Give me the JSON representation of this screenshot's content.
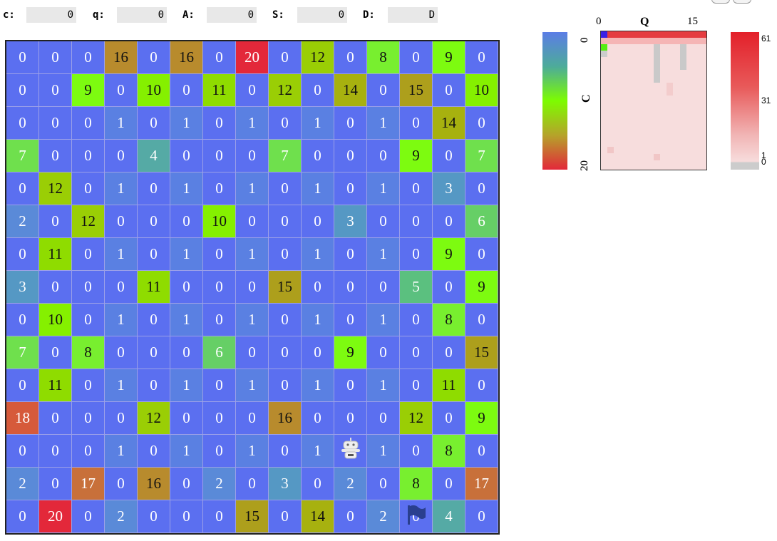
{
  "status": [
    {
      "label": "c:",
      "value": "0"
    },
    {
      "label": "q:",
      "value": "0"
    },
    {
      "label": "A:",
      "value": "0"
    },
    {
      "label": "S:",
      "value": "0"
    },
    {
      "label": "D:",
      "value": "D"
    }
  ],
  "board": {
    "rows": [
      [
        "0",
        "0",
        "0",
        "16",
        "0",
        "16",
        "0",
        "20",
        "0",
        "12",
        "0",
        "8",
        "0",
        "9",
        "0"
      ],
      [
        "0",
        "0",
        "9",
        "0",
        "10",
        "0",
        "11",
        "0",
        "12",
        "0",
        "14",
        "0",
        "15",
        "0",
        "10"
      ],
      [
        "0",
        "0",
        "0",
        "1",
        "0",
        "1",
        "0",
        "1",
        "0",
        "1",
        "0",
        "1",
        "0",
        "14",
        "0"
      ],
      [
        "7",
        "0",
        "0",
        "0",
        "4",
        "0",
        "0",
        "0",
        "7",
        "0",
        "0",
        "0",
        "9",
        "0",
        "7"
      ],
      [
        "0",
        "12",
        "0",
        "1",
        "0",
        "1",
        "0",
        "1",
        "0",
        "1",
        "0",
        "1",
        "0",
        "3",
        "0"
      ],
      [
        "2",
        "0",
        "12",
        "0",
        "0",
        "0",
        "10",
        "0",
        "0",
        "0",
        "3",
        "0",
        "0",
        "0",
        "6"
      ],
      [
        "0",
        "11",
        "0",
        "1",
        "0",
        "1",
        "0",
        "1",
        "0",
        "1",
        "0",
        "1",
        "0",
        "9",
        "0"
      ],
      [
        "3",
        "0",
        "0",
        "0",
        "11",
        "0",
        "0",
        "0",
        "15",
        "0",
        "0",
        "0",
        "5",
        "0",
        "9"
      ],
      [
        "0",
        "10",
        "0",
        "1",
        "0",
        "1",
        "0",
        "1",
        "0",
        "1",
        "0",
        "1",
        "0",
        "8",
        "0"
      ],
      [
        "7",
        "0",
        "8",
        "0",
        "0",
        "0",
        "6",
        "0",
        "0",
        "0",
        "9",
        "0",
        "0",
        "0",
        "15"
      ],
      [
        "0",
        "11",
        "0",
        "1",
        "0",
        "1",
        "0",
        "1",
        "0",
        "1",
        "0",
        "1",
        "0",
        "11",
        "0"
      ],
      [
        "18",
        "0",
        "0",
        "0",
        "12",
        "0",
        "0",
        "0",
        "16",
        "0",
        "0",
        "0",
        "12",
        "0",
        "9"
      ],
      [
        "0",
        "0",
        "0",
        "1",
        "0",
        "1",
        "0",
        "1",
        "0",
        "1",
        "",
        "1",
        "0",
        "8",
        "0"
      ],
      [
        "2",
        "0",
        "17",
        "0",
        "16",
        "0",
        "2",
        "0",
        "3",
        "0",
        "2",
        "0",
        "8",
        "0",
        "17"
      ],
      [
        "0",
        "20",
        "0",
        "2",
        "0",
        "0",
        "0",
        "15",
        "0",
        "14",
        "0",
        "2",
        "0",
        "4",
        "0"
      ]
    ],
    "agent": {
      "row": 12,
      "col": 10,
      "icon": "robot-icon"
    },
    "goal": {
      "row": 14,
      "col": 12,
      "icon": "flag-icon",
      "color": "#2a3f8f"
    },
    "colors": {
      "zero": "#5b6ff0",
      "low": "#5b7de6",
      "mid": "#7dfc00",
      "high": "#b5a32a",
      "max": "#e3283a"
    }
  },
  "colorbar": {
    "ticks": [
      "0",
      "20"
    ]
  },
  "heatmap": {
    "xlabel": "Q",
    "ylabel": "C",
    "xticks": [
      "0",
      "15"
    ],
    "yticks": [
      "0",
      "20"
    ]
  },
  "legend": {
    "ticks": [
      "61",
      "31",
      "1",
      "0"
    ]
  }
}
